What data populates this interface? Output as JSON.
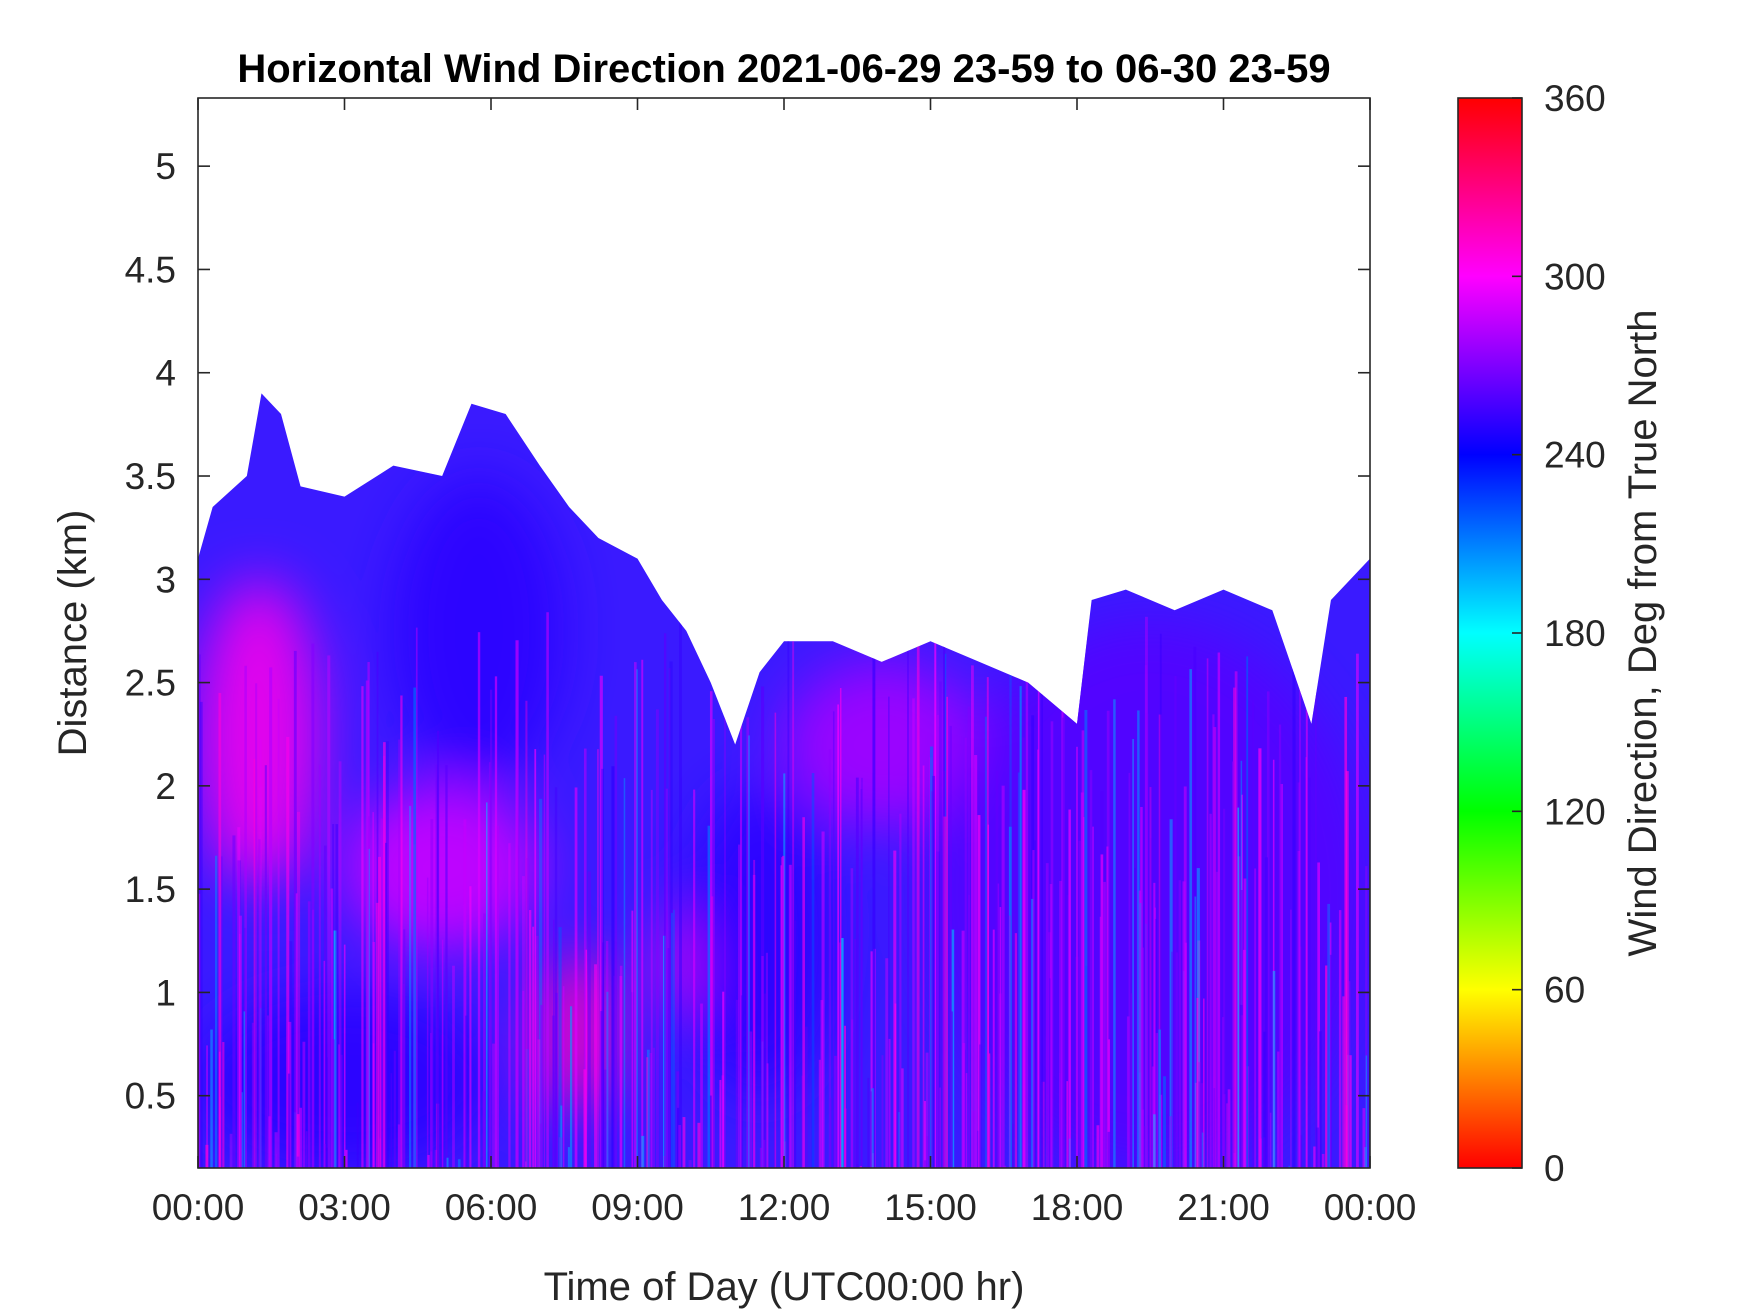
{
  "chart_data": {
    "type": "heatmap",
    "title": "Horizontal Wind Direction 2021-06-29 23-59 to 06-30 23-59",
    "xlabel": "Time of Day (UTC00:00 hr)",
    "ylabel": "Distance (km)",
    "xlim": [
      0,
      24
    ],
    "ylim": [
      0.15,
      5.33
    ],
    "x_ticks": [
      0,
      3,
      6,
      9,
      12,
      15,
      18,
      21,
      24
    ],
    "x_tick_labels": [
      "00:00",
      "03:00",
      "06:00",
      "09:00",
      "12:00",
      "15:00",
      "18:00",
      "21:00",
      "00:00"
    ],
    "y_ticks": [
      0.5,
      1,
      1.5,
      2,
      2.5,
      3,
      3.5,
      4,
      4.5,
      5
    ],
    "y_tick_labels": [
      "0.5",
      "1",
      "1.5",
      "2",
      "2.5",
      "3",
      "3.5",
      "4",
      "4.5",
      "5"
    ],
    "colorbar": {
      "label": "Wind Direction, Deg from True North",
      "range": [
        0,
        360
      ],
      "ticks": [
        0,
        60,
        120,
        180,
        240,
        300,
        360
      ],
      "tick_labels": [
        "0",
        "60",
        "120",
        "180",
        "240",
        "300",
        "360"
      ],
      "colormap": "hsv"
    },
    "data_top_km": [
      {
        "t": 0.0,
        "top": 3.1
      },
      {
        "t": 0.3,
        "top": 3.35
      },
      {
        "t": 1.0,
        "top": 3.5
      },
      {
        "t": 1.3,
        "top": 3.9
      },
      {
        "t": 1.7,
        "top": 3.8
      },
      {
        "t": 2.1,
        "top": 3.45
      },
      {
        "t": 3.0,
        "top": 3.4
      },
      {
        "t": 4.0,
        "top": 3.55
      },
      {
        "t": 5.0,
        "top": 3.5
      },
      {
        "t": 5.6,
        "top": 3.85
      },
      {
        "t": 6.3,
        "top": 3.8
      },
      {
        "t": 7.0,
        "top": 3.55
      },
      {
        "t": 7.6,
        "top": 3.35
      },
      {
        "t": 8.2,
        "top": 3.2
      },
      {
        "t": 9.0,
        "top": 3.1
      },
      {
        "t": 9.5,
        "top": 2.9
      },
      {
        "t": 10.0,
        "top": 2.75
      },
      {
        "t": 10.5,
        "top": 2.5
      },
      {
        "t": 11.0,
        "top": 2.2
      },
      {
        "t": 11.5,
        "top": 2.55
      },
      {
        "t": 12.0,
        "top": 2.7
      },
      {
        "t": 13.0,
        "top": 2.7
      },
      {
        "t": 14.0,
        "top": 2.6
      },
      {
        "t": 15.0,
        "top": 2.7
      },
      {
        "t": 16.0,
        "top": 2.6
      },
      {
        "t": 17.0,
        "top": 2.5
      },
      {
        "t": 18.0,
        "top": 2.3
      },
      {
        "t": 18.3,
        "top": 2.9
      },
      {
        "t": 19.0,
        "top": 2.95
      },
      {
        "t": 20.0,
        "top": 2.85
      },
      {
        "t": 21.0,
        "top": 2.95
      },
      {
        "t": 22.0,
        "top": 2.85
      },
      {
        "t": 22.8,
        "top": 2.3
      },
      {
        "t": 23.2,
        "top": 2.9
      },
      {
        "t": 24.0,
        "top": 3.1
      }
    ],
    "direction_regions_deg": [
      {
        "t": [
          0,
          2.5
        ],
        "z": [
          1.5,
          3.0
        ],
        "value": 305
      },
      {
        "t": [
          0,
          6
        ],
        "z": [
          0.15,
          1.0
        ],
        "value": 250
      },
      {
        "t": [
          3,
          7
        ],
        "z": [
          1.2,
          2.0
        ],
        "value": 290
      },
      {
        "t": [
          4,
          7.5
        ],
        "z": [
          2.0,
          3.5
        ],
        "value": 250
      },
      {
        "t": [
          7,
          8.5
        ],
        "z": [
          0.4,
          1.2
        ],
        "value": 315
      },
      {
        "t": [
          9.5,
          10.5
        ],
        "z": [
          0.9,
          1.4
        ],
        "value": 305
      },
      {
        "t": [
          10,
          13
        ],
        "z": [
          0.5,
          2.0
        ],
        "value": 250
      },
      {
        "t": [
          12,
          16
        ],
        "z": [
          1.8,
          2.6
        ],
        "value": 280
      },
      {
        "t": [
          15,
          24
        ],
        "z": [
          0.15,
          2.8
        ],
        "value": 260
      }
    ]
  }
}
